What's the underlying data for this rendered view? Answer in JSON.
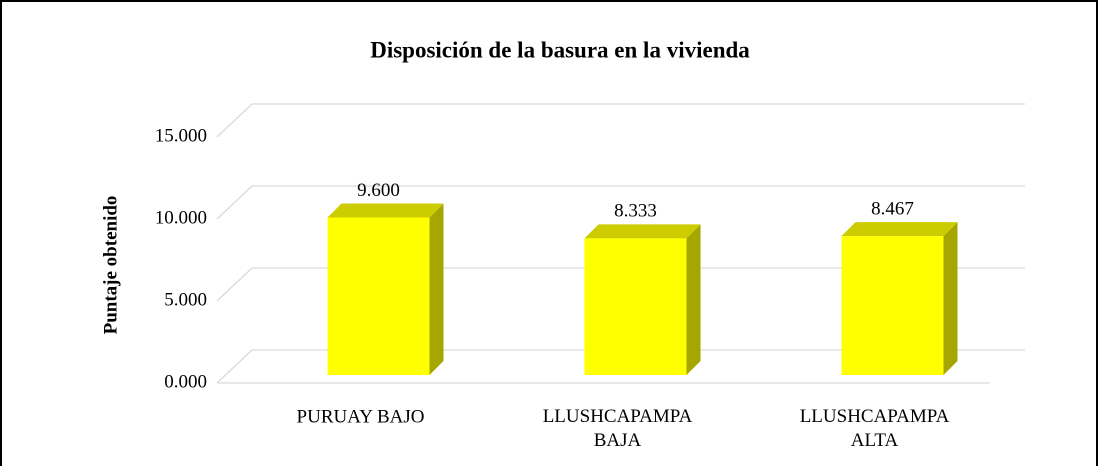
{
  "chart_data": {
    "type": "bar3d",
    "title": "Disposición de la basura en la vivienda",
    "y_axis_label": "Puntaje obtenido",
    "categories": [
      "PURUAY BAJO",
      "LLUSHCAPAMPA\nBAJA",
      "LLUSHCAPAMPA\nALTA"
    ],
    "values": [
      9.6,
      8.333,
      8.467
    ],
    "value_labels": [
      "9.600",
      "8.333",
      "8.467"
    ],
    "color": "#ffff00",
    "ylim": [
      0,
      15
    ],
    "yticks": [
      {
        "value": 0,
        "label": "0.000"
      },
      {
        "value": 5,
        "label": "5.000"
      },
      {
        "value": 10,
        "label": "10.000"
      },
      {
        "value": 15,
        "label": "15.000"
      }
    ],
    "grid": true
  }
}
